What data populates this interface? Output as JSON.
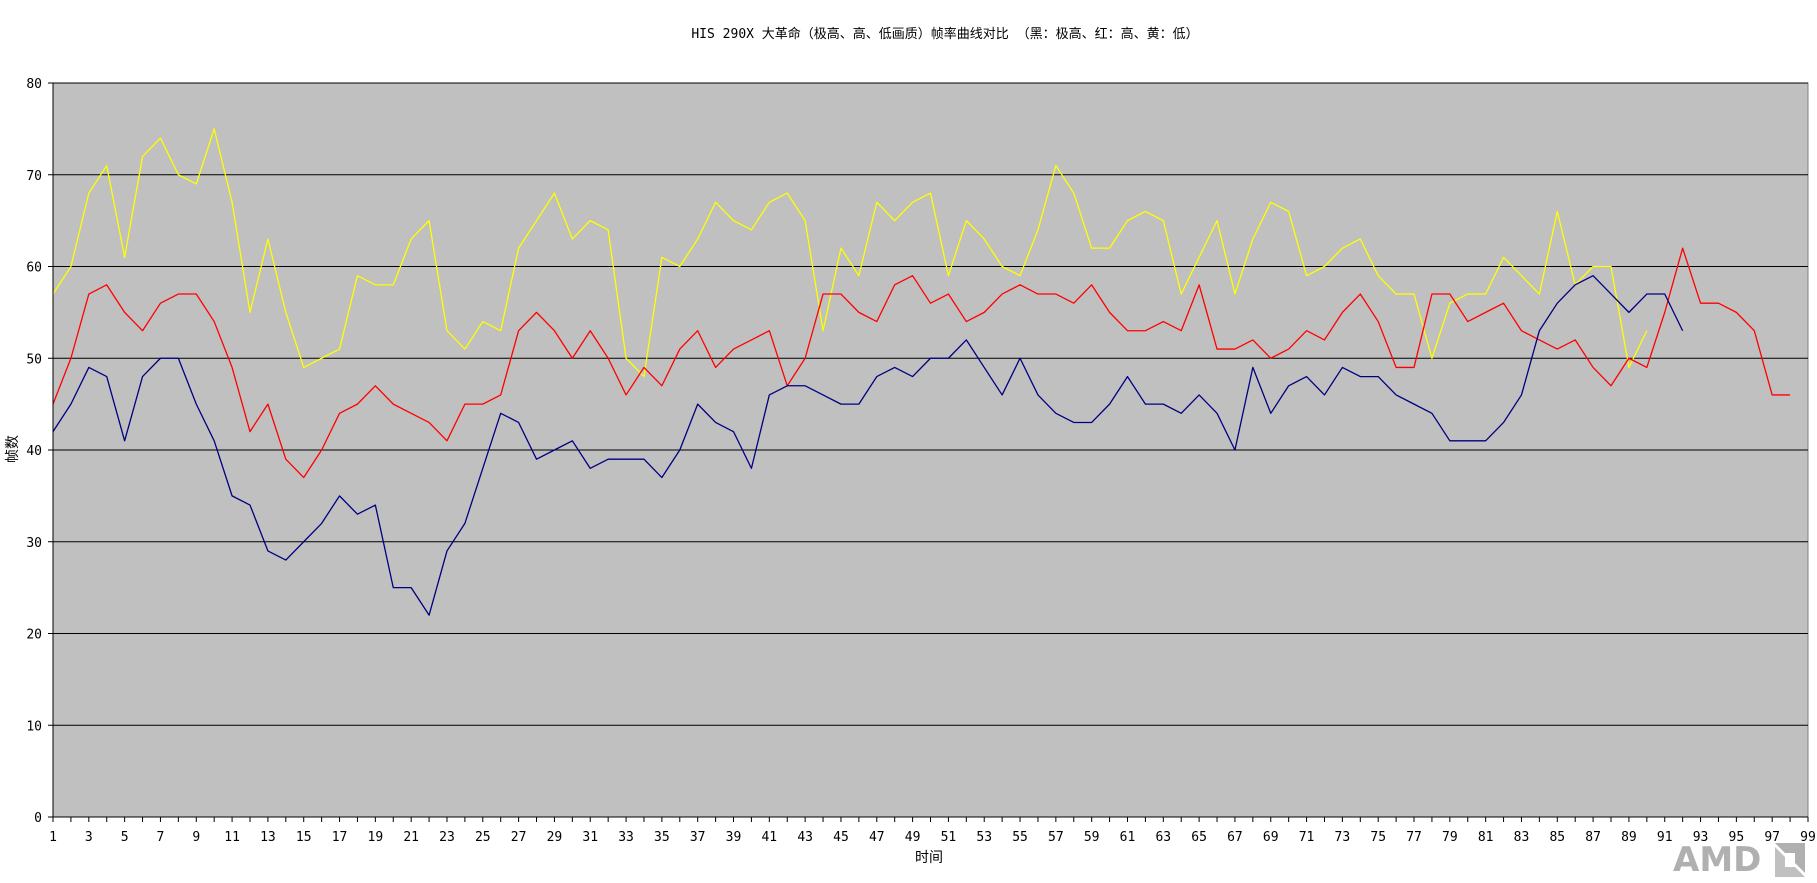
{
  "chart_data": {
    "type": "line",
    "title": "HIS 290X 大革命（极高、高、低画质）帧率曲线对比 （黑：极高、红：高、黄：低）",
    "xlabel": "时间",
    "ylabel": "帧数",
    "ylim": [
      0,
      80
    ],
    "yticks": [
      0,
      10,
      20,
      30,
      40,
      50,
      60,
      70,
      80
    ],
    "xlim": [
      1,
      99
    ],
    "xticks": [
      1,
      3,
      5,
      7,
      9,
      11,
      13,
      15,
      17,
      19,
      21,
      23,
      25,
      27,
      29,
      31,
      33,
      35,
      37,
      39,
      41,
      43,
      45,
      47,
      49,
      51,
      53,
      55,
      57,
      59,
      61,
      63,
      65,
      67,
      69,
      71,
      73,
      75,
      77,
      79,
      81,
      83,
      85,
      87,
      89,
      91,
      93,
      95,
      97,
      99
    ],
    "grid": true,
    "plot_background": "#c0c0c0",
    "series": [
      {
        "color": "#ffff00",
        "values": [
          57,
          60,
          68,
          71,
          61,
          72,
          74,
          70,
          69,
          75,
          67,
          55,
          63,
          55,
          49,
          50,
          51,
          59,
          58,
          58,
          63,
          65,
          53,
          51,
          54,
          53,
          62,
          65,
          68,
          63,
          65,
          64,
          50,
          48,
          61,
          60,
          63,
          67,
          65,
          64,
          67,
          68,
          65,
          53,
          62,
          59,
          67,
          65,
          67,
          68,
          59,
          65,
          63,
          60,
          59,
          64,
          71,
          68,
          62,
          62,
          65,
          66,
          65,
          57,
          61,
          65,
          57,
          63,
          67,
          66,
          59,
          60,
          62,
          63,
          59,
          57,
          57,
          50,
          56,
          57,
          57,
          61,
          59,
          57,
          66,
          58,
          60,
          60,
          49,
          53
        ]
      },
      {
        "color": "#ff0000",
        "values": [
          45,
          50,
          57,
          58,
          55,
          53,
          56,
          57,
          57,
          54,
          49,
          42,
          45,
          39,
          37,
          40,
          44,
          45,
          47,
          45,
          44,
          43,
          41,
          45,
          45,
          46,
          53,
          55,
          53,
          50,
          53,
          50,
          46,
          49,
          47,
          51,
          53,
          49,
          51,
          52,
          53,
          47,
          50,
          57,
          57,
          55,
          54,
          58,
          59,
          56,
          57,
          54,
          55,
          57,
          58,
          57,
          57,
          56,
          58,
          55,
          53,
          53,
          54,
          53,
          58,
          51,
          51,
          52,
          50,
          51,
          53,
          52,
          55,
          57,
          54,
          49,
          49,
          57,
          57,
          54,
          55,
          56,
          53,
          52,
          51,
          52,
          49,
          47,
          50,
          49,
          55,
          62,
          56,
          56,
          55,
          53,
          46,
          46
        ]
      },
      {
        "color": "#000080",
        "values": [
          42,
          45,
          49,
          48,
          41,
          48,
          50,
          50,
          45,
          41,
          35,
          34,
          29,
          28,
          30,
          32,
          35,
          33,
          34,
          25,
          25,
          22,
          29,
          32,
          38,
          44,
          43,
          39,
          40,
          41,
          38,
          39,
          39,
          39,
          37,
          40,
          45,
          43,
          42,
          38,
          46,
          47,
          47,
          46,
          45,
          45,
          48,
          49,
          48,
          50,
          50,
          52,
          49,
          46,
          50,
          46,
          44,
          43,
          43,
          45,
          48,
          45,
          45,
          44,
          46,
          44,
          40,
          49,
          44,
          47,
          48,
          46,
          49,
          48,
          48,
          46,
          45,
          44,
          41,
          41,
          41,
          43,
          46,
          53,
          56,
          58,
          59,
          57,
          55,
          57,
          57,
          53
        ]
      }
    ],
    "watermark": "AMD"
  }
}
